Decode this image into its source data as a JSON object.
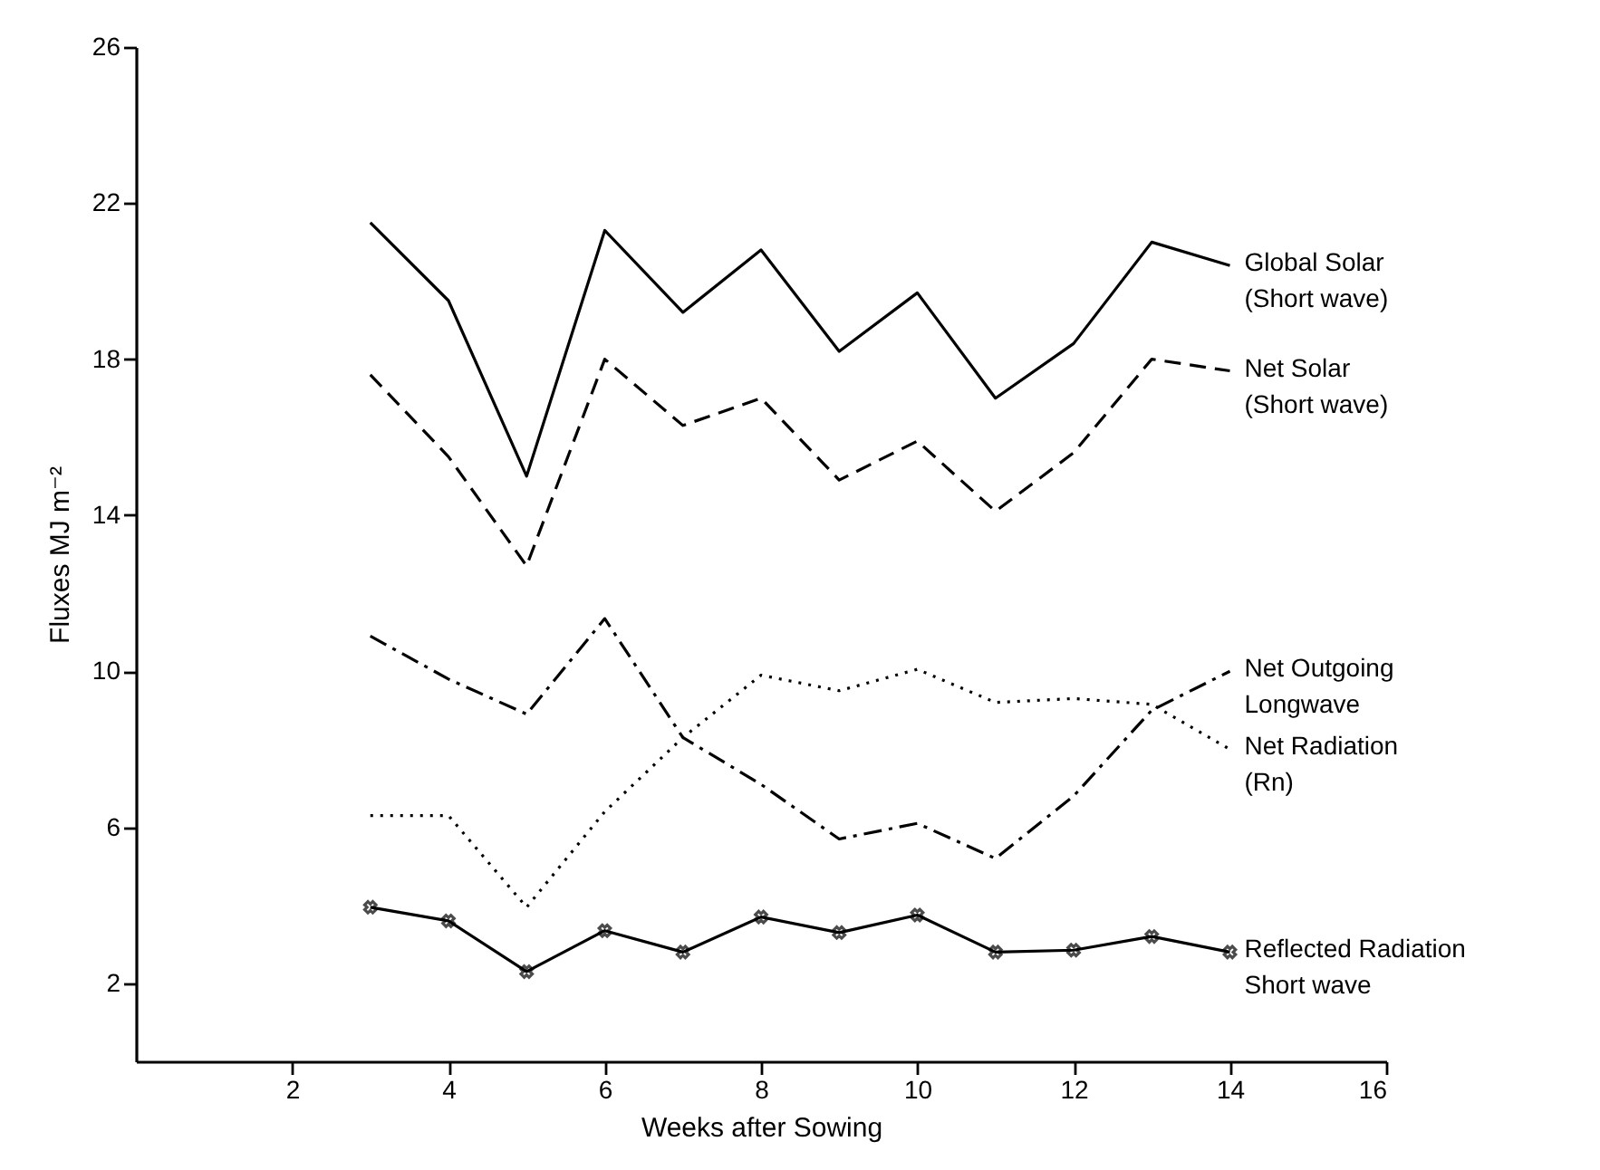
{
  "chart_data": {
    "type": "line",
    "xlabel": "Weeks after Sowing",
    "ylabel": "Fluxes  MJ m⁻²",
    "x": [
      3,
      4,
      5,
      6,
      7,
      8,
      9,
      10,
      11,
      12,
      13,
      14
    ],
    "xlim": [
      0,
      16
    ],
    "xticks": [
      2,
      4,
      6,
      8,
      10,
      12,
      14,
      16
    ],
    "ylim": [
      0,
      26
    ],
    "yticks": [
      2,
      6,
      10,
      14,
      18,
      22,
      26
    ],
    "grid": false,
    "legend": false,
    "series": [
      {
        "name": "Global Solar\n(Short wave)",
        "color": "#000000",
        "line_style": "solid",
        "values": [
          21.5,
          19.5,
          15.0,
          21.3,
          19.2,
          20.8,
          18.2,
          19.7,
          17.0,
          18.4,
          21.0,
          20.4
        ]
      },
      {
        "name": "Net Solar\n(Short wave)",
        "color": "#000000",
        "line_style": "dashed",
        "values": [
          17.6,
          15.5,
          12.7,
          18.0,
          16.3,
          17.0,
          14.9,
          15.9,
          14.1,
          15.6,
          18.0,
          17.7
        ]
      },
      {
        "name": "Net Outgoing\nLongwave",
        "color": "#000000",
        "line_style": "dashdot",
        "values": [
          10.9,
          9.8,
          8.9,
          11.35,
          8.3,
          7.1,
          5.7,
          6.1,
          5.2,
          6.8,
          9.0,
          10.0
        ]
      },
      {
        "name": "Net Radiation\n(Rn)",
        "color": "#000000",
        "line_style": "dotted",
        "values": [
          6.3,
          6.3,
          3.95,
          6.4,
          8.3,
          9.9,
          9.5,
          10.05,
          9.2,
          9.3,
          9.15,
          8.0
        ]
      },
      {
        "name": "Reflected Radiation\nShort wave",
        "color": "#000000",
        "line_style": "solid",
        "marker": "cross",
        "values": [
          3.95,
          3.6,
          2.3,
          3.35,
          2.8,
          3.7,
          3.3,
          3.75,
          2.8,
          2.85,
          3.2,
          2.8
        ]
      }
    ]
  }
}
